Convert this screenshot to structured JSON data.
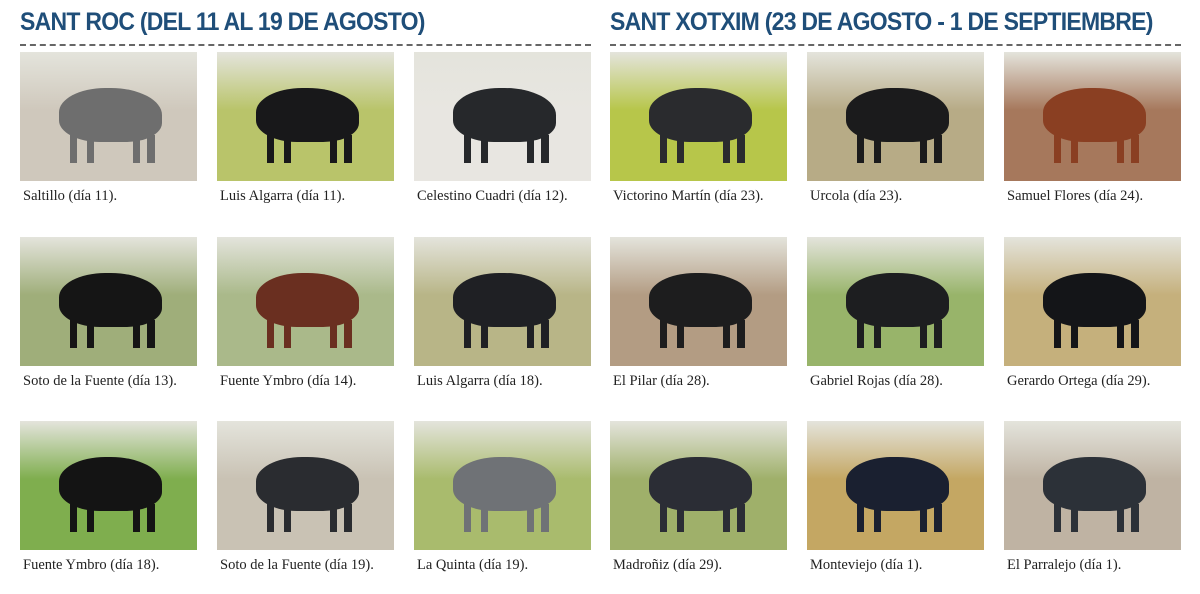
{
  "sections": [
    {
      "title": "SANT ROC (DEL 11 AL 19 DE AGOSTO)",
      "items": [
        {
          "caption": "Saltillo (día 11).",
          "bg": "#cfc8bc",
          "bull": "#6e6e6e"
        },
        {
          "caption": "Luis Algarra (día 11).",
          "bg": "#b9c46a",
          "bull": "#18181a"
        },
        {
          "caption": "Celestino Cuadri (día 12).",
          "bg": "#e8e6e1",
          "bull": "#26282b"
        },
        {
          "caption": "Soto de la Fuente (día 13).",
          "bg": "#9fae7a",
          "bull": "#151515"
        },
        {
          "caption": "Fuente Ymbro (día 14).",
          "bg": "#aab98a",
          "bull": "#6a2f20"
        },
        {
          "caption": "Luis Algarra (día 18).",
          "bg": "#b8b587",
          "bull": "#1f2024"
        },
        {
          "caption": "Fuente Ymbro (día 18).",
          "bg": "#7fae4e",
          "bull": "#141414"
        },
        {
          "caption": "Soto de la Fuente (día 19).",
          "bg": "#c9c2b4",
          "bull": "#2a2c30"
        },
        {
          "caption": "La Quinta (día 19).",
          "bg": "#a9bb6d",
          "bull": "#6f7276"
        }
      ]
    },
    {
      "title": "SANT XOTXIM (23 DE AGOSTO - 1 DE SEPTIEMBRE)",
      "items": [
        {
          "caption": "Victorino Martín (día 23).",
          "bg": "#b7c64a",
          "bull": "#2a2b2e"
        },
        {
          "caption": "Urcola (día 23).",
          "bg": "#b7ab86",
          "bull": "#1b1b1c"
        },
        {
          "caption": "Samuel Flores (día 24).",
          "bg": "#a6785c",
          "bull": "#8a3f22"
        },
        {
          "caption": "El Pilar (día 28).",
          "bg": "#b39c83",
          "bull": "#1d1d1e"
        },
        {
          "caption": "Gabriel Rojas (día 28).",
          "bg": "#98b46a",
          "bull": "#1d1e20"
        },
        {
          "caption": "Gerardo Ortega (día 29).",
          "bg": "#c5b07c",
          "bull": "#141518"
        },
        {
          "caption": "Madroñiz (día 29).",
          "bg": "#9fb06a",
          "bull": "#2b2d35"
        },
        {
          "caption": "Monteviejo (día 1).",
          "bg": "#c4a763",
          "bull": "#1a2030"
        },
        {
          "caption": "El Parralejo (día 1).",
          "bg": "#bfb3a3",
          "bull": "#2c3138"
        }
      ]
    }
  ]
}
